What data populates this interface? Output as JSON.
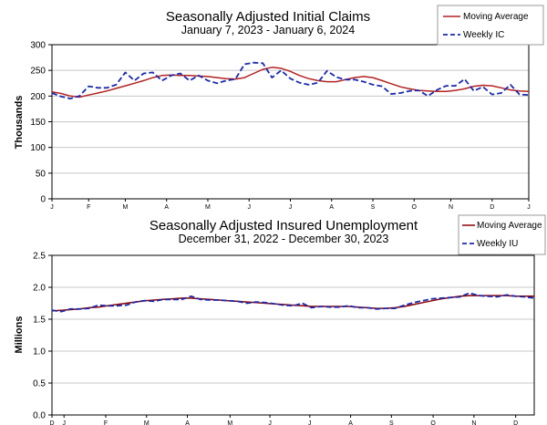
{
  "chart_data": [
    {
      "type": "line",
      "title": "Seasonally Adjusted Initial Claims",
      "subtitle": "January 7, 2023 - January 6, 2024",
      "ylabel": "Thousands",
      "xlabel": "",
      "ylim": [
        0,
        300
      ],
      "yticks": [
        0,
        50,
        100,
        150,
        200,
        250,
        300
      ],
      "ytick_labels": [
        "0",
        "50",
        "100",
        "150",
        "200",
        "250",
        "300"
      ],
      "x_range": [
        0,
        52
      ],
      "month_ticks": [
        {
          "label": "J",
          "x": 0
        },
        {
          "label": "F",
          "x": 4
        },
        {
          "label": "M",
          "x": 8
        },
        {
          "label": "A",
          "x": 12.5
        },
        {
          "label": "M",
          "x": 17
        },
        {
          "label": "J",
          "x": 21.5
        },
        {
          "label": "J",
          "x": 26
        },
        {
          "label": "A",
          "x": 30.5
        },
        {
          "label": "S",
          "x": 35
        },
        {
          "label": "O",
          "x": 39.5
        },
        {
          "label": "N",
          "x": 43.5
        },
        {
          "label": "D",
          "x": 48
        },
        {
          "label": "J",
          "x": 52
        }
      ],
      "grid": true,
      "legend_position": "top-right",
      "series": [
        {
          "name": "Moving Average",
          "color": "#b22222",
          "style": "solid",
          "values": [
            208,
            205,
            200,
            198,
            202,
            206,
            210,
            215,
            220,
            225,
            230,
            236,
            240,
            241,
            240,
            240,
            239,
            238,
            236,
            234,
            233,
            236,
            244,
            252,
            256,
            254,
            248,
            240,
            234,
            230,
            228,
            228,
            232,
            236,
            238,
            236,
            230,
            224,
            218,
            214,
            211,
            210,
            209,
            209,
            211,
            214,
            219,
            221,
            220,
            216,
            212,
            210,
            209
          ]
        },
        {
          "name": "Weekly IC",
          "color": "#1a2ab0",
          "style": "dashed",
          "values": [
            206,
            199,
            195,
            200,
            219,
            216,
            216,
            222,
            246,
            230,
            244,
            246,
            230,
            240,
            244,
            230,
            240,
            230,
            225,
            230,
            233,
            262,
            265,
            264,
            236,
            250,
            234,
            226,
            222,
            226,
            249,
            237,
            232,
            232,
            228,
            222,
            219,
            204,
            206,
            210,
            211,
            200,
            212,
            220,
            220,
            233,
            210,
            218,
            203,
            206,
            222,
            203,
            202
          ]
        }
      ]
    },
    {
      "type": "line",
      "title": "Seasonally Adjusted Insured Unemployment",
      "subtitle": "December 31, 2022 - December 30, 2023",
      "ylabel": "Millions",
      "xlabel": "",
      "ylim": [
        0,
        2.5
      ],
      "yticks": [
        0,
        0.5,
        1,
        1.5,
        2,
        2.5
      ],
      "ytick_labels": [
        "0.0",
        "0.5",
        "1.0",
        "1.5",
        "2.0",
        "2.5"
      ],
      "x_range": [
        0,
        52
      ],
      "month_ticks": [
        {
          "label": "D",
          "x": 0
        },
        {
          "label": "J",
          "x": 1.3
        },
        {
          "label": "F",
          "x": 5.8
        },
        {
          "label": "M",
          "x": 10.2
        },
        {
          "label": "A",
          "x": 14.6
        },
        {
          "label": "M",
          "x": 19.2
        },
        {
          "label": "J",
          "x": 23.5
        },
        {
          "label": "J",
          "x": 27.8
        },
        {
          "label": "A",
          "x": 32.2
        },
        {
          "label": "S",
          "x": 36.6
        },
        {
          "label": "O",
          "x": 41.1
        },
        {
          "label": "N",
          "x": 45.5
        },
        {
          "label": "D",
          "x": 50
        }
      ],
      "grid": true,
      "legend_position": "top-right",
      "series": [
        {
          "name": "Moving Average",
          "color": "#8b0000",
          "style": "solid",
          "values": [
            1.63,
            1.64,
            1.65,
            1.66,
            1.68,
            1.69,
            1.71,
            1.73,
            1.75,
            1.77,
            1.79,
            1.8,
            1.81,
            1.82,
            1.83,
            1.83,
            1.82,
            1.81,
            1.8,
            1.79,
            1.78,
            1.77,
            1.76,
            1.75,
            1.74,
            1.73,
            1.72,
            1.71,
            1.7,
            1.7,
            1.7,
            1.7,
            1.7,
            1.69,
            1.68,
            1.67,
            1.67,
            1.68,
            1.7,
            1.73,
            1.76,
            1.79,
            1.82,
            1.84,
            1.86,
            1.87,
            1.87,
            1.87,
            1.87,
            1.87,
            1.86,
            1.86,
            1.86
          ]
        },
        {
          "name": "Weekly IU",
          "color": "#1a2ab0",
          "style": "dashed",
          "values": [
            1.64,
            1.62,
            1.66,
            1.66,
            1.67,
            1.72,
            1.71,
            1.71,
            1.72,
            1.77,
            1.79,
            1.78,
            1.81,
            1.81,
            1.81,
            1.86,
            1.81,
            1.8,
            1.8,
            1.79,
            1.78,
            1.75,
            1.77,
            1.76,
            1.74,
            1.72,
            1.71,
            1.75,
            1.68,
            1.7,
            1.69,
            1.69,
            1.71,
            1.68,
            1.68,
            1.66,
            1.67,
            1.67,
            1.72,
            1.76,
            1.79,
            1.82,
            1.83,
            1.84,
            1.85,
            1.91,
            1.87,
            1.86,
            1.85,
            1.88,
            1.86,
            1.85,
            1.83
          ]
        }
      ]
    }
  ]
}
